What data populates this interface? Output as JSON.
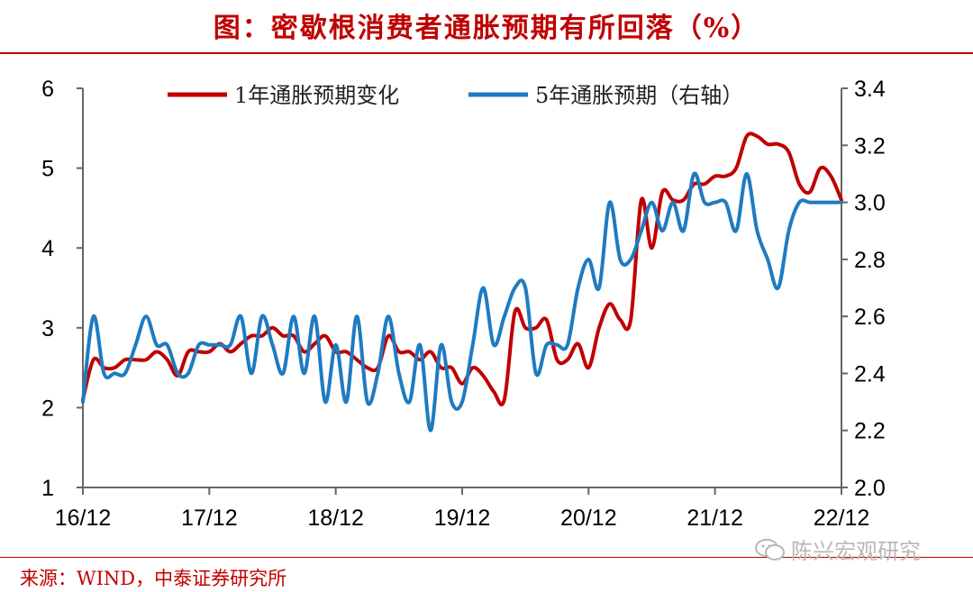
{
  "title": "图：密歇根消费者通胀预期有所回落（%）",
  "source": "来源：WIND，中泰证券研究所",
  "watermark": "陈兴宏观研究",
  "colors": {
    "accent": "#c00000",
    "series1": "#c00000",
    "series2": "#1f7bc0"
  },
  "chart_data": {
    "type": "line",
    "x_ticks": [
      "16/12",
      "17/12",
      "18/12",
      "19/12",
      "20/12",
      "21/12",
      "22/12"
    ],
    "x_range": [
      "2016-12",
      "2022-12"
    ],
    "ylim_left": [
      1,
      6
    ],
    "ylim_right": [
      2.0,
      3.4
    ],
    "y_ticks_left": [
      "1",
      "2",
      "3",
      "4",
      "5",
      "6"
    ],
    "y_ticks_right": [
      "2.0",
      "2.2",
      "2.4",
      "2.6",
      "2.8",
      "3.0",
      "3.2",
      "3.4"
    ],
    "grid": false,
    "legend_position": "top",
    "series": [
      {
        "name": "1年通胀预期变化",
        "axis": "left",
        "color": "#c00000",
        "x": [
          "2016-12",
          "2017-01",
          "2017-02",
          "2017-03",
          "2017-04",
          "2017-05",
          "2017-06",
          "2017-07",
          "2017-08",
          "2017-09",
          "2017-10",
          "2017-11",
          "2017-12",
          "2018-01",
          "2018-02",
          "2018-03",
          "2018-04",
          "2018-05",
          "2018-06",
          "2018-07",
          "2018-08",
          "2018-09",
          "2018-10",
          "2018-11",
          "2018-12",
          "2019-01",
          "2019-02",
          "2019-03",
          "2019-04",
          "2019-05",
          "2019-06",
          "2019-07",
          "2019-08",
          "2019-09",
          "2019-10",
          "2019-11",
          "2019-12",
          "2020-01",
          "2020-02",
          "2020-03",
          "2020-04",
          "2020-05",
          "2020-06",
          "2020-07",
          "2020-08",
          "2020-09",
          "2020-10",
          "2020-11",
          "2020-12",
          "2021-01",
          "2021-02",
          "2021-03",
          "2021-04",
          "2021-05",
          "2021-06",
          "2021-07",
          "2021-08",
          "2021-09",
          "2021-10",
          "2021-11",
          "2021-12",
          "2022-01",
          "2022-02",
          "2022-03",
          "2022-04",
          "2022-05",
          "2022-06",
          "2022-07",
          "2022-08",
          "2022-09",
          "2022-10",
          "2022-11",
          "2022-12"
        ],
        "y": [
          2.1,
          2.6,
          2.5,
          2.5,
          2.6,
          2.6,
          2.6,
          2.7,
          2.6,
          2.4,
          2.7,
          2.7,
          2.7,
          2.8,
          2.7,
          2.8,
          2.9,
          2.9,
          3.0,
          2.9,
          2.9,
          2.7,
          2.8,
          2.9,
          2.7,
          2.7,
          2.6,
          2.5,
          2.5,
          2.9,
          2.7,
          2.7,
          2.6,
          2.7,
          2.5,
          2.5,
          2.3,
          2.5,
          2.4,
          2.2,
          2.1,
          3.2,
          3.0,
          3.0,
          3.1,
          2.6,
          2.6,
          2.8,
          2.5,
          3.0,
          3.3,
          3.1,
          3.1,
          4.6,
          4.0,
          4.7,
          4.6,
          4.6,
          4.8,
          4.8,
          4.9,
          4.9,
          5.0,
          5.4,
          5.4,
          5.3,
          5.3,
          5.2,
          4.8,
          4.7,
          5.0,
          4.9,
          4.6
        ]
      },
      {
        "name": "5年通胀预期（右轴）",
        "axis": "right",
        "color": "#1f7bc0",
        "x": [
          "2016-12",
          "2017-01",
          "2017-02",
          "2017-03",
          "2017-04",
          "2017-05",
          "2017-06",
          "2017-07",
          "2017-08",
          "2017-09",
          "2017-10",
          "2017-11",
          "2017-12",
          "2018-01",
          "2018-02",
          "2018-03",
          "2018-04",
          "2018-05",
          "2018-06",
          "2018-07",
          "2018-08",
          "2018-09",
          "2018-10",
          "2018-11",
          "2018-12",
          "2019-01",
          "2019-02",
          "2019-03",
          "2019-04",
          "2019-05",
          "2019-06",
          "2019-07",
          "2019-08",
          "2019-09",
          "2019-10",
          "2019-11",
          "2019-12",
          "2020-01",
          "2020-02",
          "2020-03",
          "2020-04",
          "2020-05",
          "2020-06",
          "2020-07",
          "2020-08",
          "2020-09",
          "2020-10",
          "2020-11",
          "2020-12",
          "2021-01",
          "2021-02",
          "2021-03",
          "2021-04",
          "2021-05",
          "2021-06",
          "2021-07",
          "2021-08",
          "2021-09",
          "2021-10",
          "2021-11",
          "2021-12",
          "2022-01",
          "2022-02",
          "2022-03",
          "2022-04",
          "2022-05",
          "2022-06",
          "2022-07",
          "2022-08",
          "2022-09",
          "2022-10",
          "2022-11",
          "2022-12"
        ],
        "y": [
          2.3,
          2.6,
          2.4,
          2.4,
          2.4,
          2.5,
          2.6,
          2.5,
          2.5,
          2.4,
          2.4,
          2.5,
          2.5,
          2.5,
          2.5,
          2.6,
          2.4,
          2.6,
          2.5,
          2.4,
          2.6,
          2.4,
          2.6,
          2.3,
          2.5,
          2.3,
          2.6,
          2.3,
          2.4,
          2.6,
          2.4,
          2.3,
          2.5,
          2.2,
          2.5,
          2.3,
          2.3,
          2.5,
          2.7,
          2.5,
          2.6,
          2.7,
          2.7,
          2.4,
          2.5,
          2.5,
          2.5,
          2.7,
          2.8,
          2.7,
          3.0,
          2.8,
          2.8,
          2.9,
          3.0,
          2.9,
          3.0,
          2.9,
          3.1,
          3.0,
          3.0,
          3.0,
          2.9,
          3.1,
          2.9,
          2.8,
          2.7,
          2.9,
          3.0,
          3.0,
          3.0,
          3.0,
          3.0
        ]
      }
    ]
  }
}
